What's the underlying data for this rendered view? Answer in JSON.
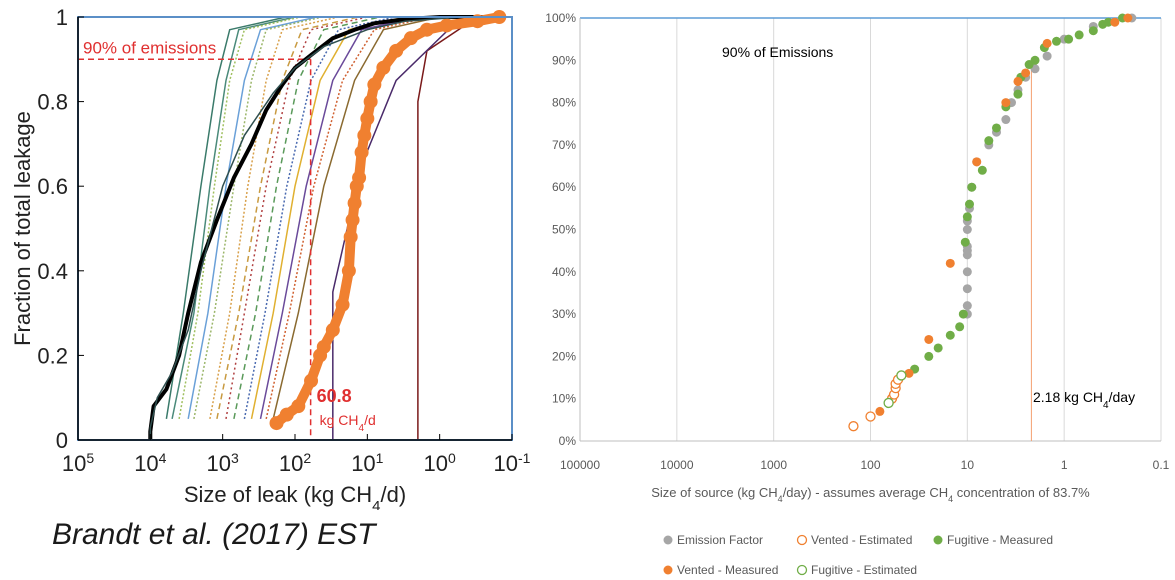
{
  "citation": "Brandt et al. (2017) EST",
  "chart_data": [
    {
      "type": "line",
      "ylabel": "Fraction of total leakage",
      "xlabel": "Size of leak (kg CH4/d)",
      "xscale": "log",
      "xaxis": "reversed",
      "xlim": [
        100000,
        0.1
      ],
      "ylim": [
        0,
        1
      ],
      "x_tick_labels": [
        "10^5",
        "10^4",
        "10^3",
        "10^2",
        "10^1",
        "10^0",
        "10^-1"
      ],
      "y_tick_labels": [
        "0",
        "0.2",
        "0.4",
        "0.6",
        "0.8",
        "1"
      ],
      "annotations": [
        "90% of emissions",
        "60.8",
        "kg CH4/d"
      ],
      "annotation_values": {
        "threshold_fraction": 0.9,
        "threshold_leak": 60.8
      },
      "colors": {
        "orange": "#f08030",
        "black": "#000000",
        "red": "#e03030",
        "frame": "#5b8fc7"
      },
      "series": [
        {
          "style": "thick-black",
          "x": [
            10000,
            10000,
            9000,
            6000,
            4000,
            3000,
            2000,
            1200,
            700,
            400,
            250,
            150,
            100,
            60,
            30,
            15,
            8,
            3,
            1,
            0.3,
            0.15
          ],
          "y": [
            0,
            0.02,
            0.08,
            0.12,
            0.2,
            0.3,
            0.42,
            0.52,
            0.62,
            0.7,
            0.78,
            0.84,
            0.88,
            0.91,
            0.95,
            0.97,
            0.985,
            0.995,
            1,
            1,
            1
          ]
        },
        {
          "style": "thick-orange-dots",
          "x": [
            180,
            130,
            90,
            60,
            45,
            40,
            30,
            22,
            18,
            17,
            16,
            15,
            14,
            13,
            12,
            11,
            10,
            9,
            8,
            6,
            4,
            2.5,
            1.5,
            0.8,
            0.3,
            0.15
          ],
          "y": [
            0.04,
            0.06,
            0.08,
            0.14,
            0.2,
            0.22,
            0.26,
            0.32,
            0.4,
            0.48,
            0.52,
            0.56,
            0.6,
            0.62,
            0.68,
            0.72,
            0.76,
            0.8,
            0.84,
            0.88,
            0.92,
            0.95,
            0.97,
            0.98,
            0.99,
            1
          ]
        },
        {
          "style": "thin-dark",
          "x": [
            10000,
            10000,
            8000,
            5000,
            3000,
            2000,
            1000,
            500,
            200,
            100,
            40,
            10,
            3,
            0.5,
            0.15
          ],
          "y": [
            0,
            0.03,
            0.1,
            0.16,
            0.26,
            0.4,
            0.6,
            0.72,
            0.82,
            0.88,
            0.93,
            0.97,
            0.99,
            1,
            1
          ]
        }
      ]
    },
    {
      "type": "scatter",
      "xlabel": "Size of source (kg CH4/day) - assumes average CH4 concentration of 83.7%",
      "xscale": "log",
      "xaxis": "reversed",
      "xlim": [
        100000,
        0.1
      ],
      "ylim": [
        0,
        1
      ],
      "x_tick_labels": [
        "100000",
        "10000",
        "1000",
        "100",
        "10",
        "1",
        "0.1"
      ],
      "y_tick_labels": [
        "0%",
        "10%",
        "20%",
        "30%",
        "40%",
        "50%",
        "60%",
        "70%",
        "80%",
        "90%",
        "100%"
      ],
      "annotations": [
        "90% of Emissions",
        "2.18 kg CH4/day"
      ],
      "annotation_values": {
        "threshold_fraction": 0.9,
        "threshold_size": 2.18
      },
      "legend_placement": "bottom",
      "series": [
        {
          "name": "Emission Factor",
          "marker": "filled",
          "color": "#a6a6a6",
          "x": [
            10,
            10,
            10,
            10,
            10,
            10,
            10,
            10,
            10,
            9.5,
            9,
            8,
            6,
            5,
            4,
            3.5,
            3,
            2.5,
            2,
            1.5,
            1,
            0.5,
            0.2
          ],
          "y": [
            0.3,
            0.32,
            0.36,
            0.4,
            0.44,
            0.45,
            0.46,
            0.5,
            0.52,
            0.55,
            0.6,
            0.66,
            0.7,
            0.73,
            0.76,
            0.8,
            0.83,
            0.86,
            0.88,
            0.91,
            0.95,
            0.98,
            1.0
          ]
        },
        {
          "name": "Vented - Estimated",
          "marker": "hollow",
          "color": "#f08030",
          "x": [
            150,
            100,
            60,
            57,
            55,
            55,
            52
          ],
          "y": [
            0.035,
            0.058,
            0.1,
            0.11,
            0.125,
            0.135,
            0.145
          ]
        },
        {
          "name": "Fugitive - Measured",
          "marker": "filled",
          "color": "#70ad47",
          "x": [
            35,
            25,
            20,
            15,
            12,
            11,
            10.5,
            10,
            9.5,
            9,
            7,
            6,
            5,
            4,
            3,
            2.8,
            2.3,
            2,
            1.6,
            1.2,
            0.9,
            0.7,
            0.5,
            0.4,
            0.35,
            0.25
          ],
          "y": [
            0.17,
            0.2,
            0.22,
            0.25,
            0.27,
            0.3,
            0.47,
            0.53,
            0.56,
            0.6,
            0.64,
            0.71,
            0.74,
            0.79,
            0.82,
            0.86,
            0.89,
            0.9,
            0.93,
            0.945,
            0.95,
            0.96,
            0.97,
            0.985,
            0.99,
            1.0
          ]
        },
        {
          "name": "Vented - Measured",
          "marker": "filled",
          "color": "#f08030",
          "x": [
            80,
            40,
            25,
            15,
            8,
            4,
            3,
            2.5,
            1.5,
            0.3,
            0.22
          ],
          "y": [
            0.07,
            0.16,
            0.24,
            0.42,
            0.66,
            0.8,
            0.85,
            0.87,
            0.94,
            0.99,
            1.0
          ]
        },
        {
          "name": "Fugitive - Estimated",
          "marker": "hollow",
          "color": "#70ad47",
          "x": [
            65,
            48
          ],
          "y": [
            0.09,
            0.155
          ]
        }
      ]
    }
  ]
}
